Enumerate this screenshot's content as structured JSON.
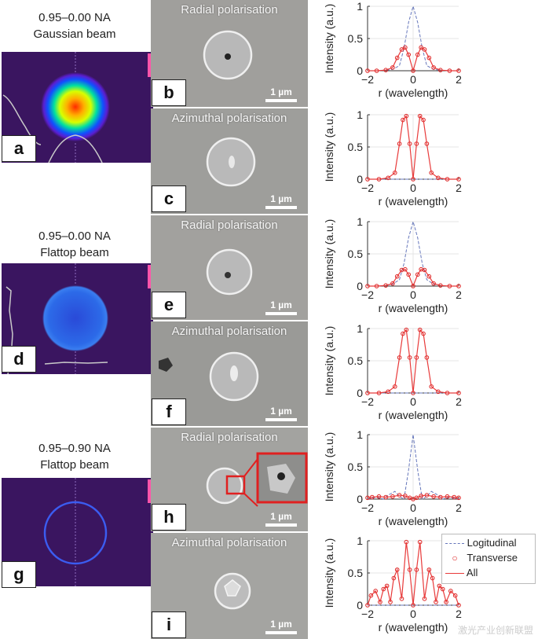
{
  "beams": [
    {
      "line1": "0.95–0.00 NA",
      "line2": "Gaussian beam",
      "label": "a"
    },
    {
      "line1": "0.95–0.00 NA",
      "line2": "Flattop beam",
      "label": "d"
    },
    {
      "line1": "0.95–0.90 NA",
      "line2": "Flattop beam",
      "label": "g"
    }
  ],
  "sem": [
    {
      "title": "Radial polarisation",
      "label": "b",
      "scale": "1 µm"
    },
    {
      "title": "Azimuthal polarisation",
      "label": "c",
      "scale": "1 µm"
    },
    {
      "title": "Radial polarisation",
      "label": "e",
      "scale": "1 µm"
    },
    {
      "title": "Azimuthal polarisation",
      "label": "f",
      "scale": "1 µm"
    },
    {
      "title": "Radial polarisation",
      "label": "h",
      "scale": "1 µm"
    },
    {
      "title": "Azimuthal polarisation",
      "label": "i",
      "scale": "1 µm"
    }
  ],
  "legend": {
    "longitudinal": "Logitudinal",
    "transverse": "Transverse",
    "all": "All"
  },
  "colors": {
    "longitudinal": "#6677bb",
    "transverse": "#dd2222",
    "all": "#e83a3a",
    "sem_bg": "#9a9a9a",
    "beam_bg": "#3a1560"
  },
  "watermark": "激光产业创新联盟",
  "chart_data": [
    {
      "type": "line",
      "panel": "b",
      "xlabel": "r (wavelength)",
      "ylabel": "Intensity (a.u.)",
      "xlim": [
        -2,
        2
      ],
      "ylim": [
        0,
        1
      ],
      "xticks": [
        -2,
        0,
        2
      ],
      "yticks": [
        0,
        0.5,
        1
      ],
      "series": [
        {
          "name": "Logitudinal",
          "x": [
            -2,
            -1.6,
            -1.2,
            -0.9,
            -0.6,
            -0.4,
            -0.2,
            0,
            0.2,
            0.4,
            0.6,
            0.9,
            1.2,
            1.6,
            2
          ],
          "y": [
            0,
            0,
            0.01,
            0.02,
            0.08,
            0.35,
            0.75,
            1.0,
            0.75,
            0.35,
            0.08,
            0.02,
            0.01,
            0,
            0
          ]
        },
        {
          "name": "Transverse",
          "x": [
            -2,
            -1.6,
            -1.2,
            -0.9,
            -0.7,
            -0.5,
            -0.35,
            -0.2,
            0,
            0.2,
            0.35,
            0.5,
            0.7,
            0.9,
            1.2,
            1.6,
            2
          ],
          "y": [
            0,
            0,
            0.01,
            0.05,
            0.2,
            0.33,
            0.36,
            0.25,
            0,
            0.25,
            0.36,
            0.33,
            0.2,
            0.05,
            0.01,
            0,
            0
          ]
        },
        {
          "name": "All",
          "x": [
            -2,
            -1.6,
            -1.2,
            -0.9,
            -0.7,
            -0.5,
            -0.35,
            -0.2,
            0,
            0.2,
            0.35,
            0.5,
            0.7,
            0.9,
            1.2,
            1.6,
            2
          ],
          "y": [
            0,
            0,
            0.01,
            0.05,
            0.2,
            0.33,
            0.36,
            0.25,
            0,
            0.25,
            0.36,
            0.33,
            0.2,
            0.05,
            0.01,
            0,
            0
          ]
        }
      ]
    },
    {
      "type": "line",
      "panel": "c",
      "xlabel": "r (wavelength)",
      "ylabel": "Intensity (a.u.)",
      "xlim": [
        -2,
        2
      ],
      "ylim": [
        0,
        1
      ],
      "xticks": [
        -2,
        0,
        2
      ],
      "yticks": [
        0,
        0.5,
        1
      ],
      "series": [
        {
          "name": "Logitudinal",
          "x": [
            -2,
            2
          ],
          "y": [
            0,
            0
          ]
        },
        {
          "name": "Transverse",
          "x": [
            -2,
            -1.5,
            -1.1,
            -0.8,
            -0.6,
            -0.45,
            -0.3,
            -0.15,
            0,
            0.15,
            0.3,
            0.45,
            0.6,
            0.8,
            1.1,
            1.5,
            2
          ],
          "y": [
            0,
            0,
            0.02,
            0.1,
            0.55,
            0.92,
            0.98,
            0.55,
            0,
            0.55,
            0.98,
            0.92,
            0.55,
            0.1,
            0.02,
            0,
            0
          ]
        },
        {
          "name": "All",
          "x": [
            -2,
            -1.5,
            -1.1,
            -0.8,
            -0.6,
            -0.45,
            -0.3,
            -0.15,
            0,
            0.15,
            0.3,
            0.45,
            0.6,
            0.8,
            1.1,
            1.5,
            2
          ],
          "y": [
            0,
            0,
            0.02,
            0.1,
            0.55,
            0.92,
            0.98,
            0.55,
            0,
            0.55,
            0.98,
            0.92,
            0.55,
            0.1,
            0.02,
            0,
            0
          ]
        }
      ]
    },
    {
      "type": "line",
      "panel": "e",
      "xlabel": "r (wavelength)",
      "ylabel": "Intensity (a.u.)",
      "xlim": [
        -2,
        2
      ],
      "ylim": [
        0,
        1
      ],
      "xticks": [
        -2,
        0,
        2
      ],
      "yticks": [
        0,
        0.5,
        1
      ],
      "series": [
        {
          "name": "Logitudinal",
          "x": [
            -2,
            -1.6,
            -1.2,
            -0.9,
            -0.6,
            -0.4,
            -0.2,
            0,
            0.2,
            0.4,
            0.6,
            0.9,
            1.2,
            1.6,
            2
          ],
          "y": [
            0,
            0,
            0.01,
            0.03,
            0.1,
            0.35,
            0.75,
            1.0,
            0.75,
            0.35,
            0.1,
            0.03,
            0.01,
            0,
            0
          ]
        },
        {
          "name": "Transverse",
          "x": [
            -2,
            -1.6,
            -1.2,
            -0.9,
            -0.7,
            -0.5,
            -0.35,
            -0.2,
            0,
            0.2,
            0.35,
            0.5,
            0.7,
            0.9,
            1.2,
            1.6,
            2
          ],
          "y": [
            0,
            0,
            0.01,
            0.04,
            0.15,
            0.25,
            0.26,
            0.18,
            0,
            0.18,
            0.26,
            0.25,
            0.15,
            0.04,
            0.01,
            0,
            0
          ]
        },
        {
          "name": "All",
          "x": [
            -2,
            -1.6,
            -1.2,
            -0.9,
            -0.7,
            -0.5,
            -0.35,
            -0.2,
            0,
            0.2,
            0.35,
            0.5,
            0.7,
            0.9,
            1.2,
            1.6,
            2
          ],
          "y": [
            0,
            0,
            0.01,
            0.04,
            0.15,
            0.25,
            0.26,
            0.18,
            0,
            0.18,
            0.26,
            0.25,
            0.15,
            0.04,
            0.01,
            0,
            0
          ]
        }
      ]
    },
    {
      "type": "line",
      "panel": "f",
      "xlabel": "r (wavelength)",
      "ylabel": "Intensity (a.u.)",
      "xlim": [
        -2,
        2
      ],
      "ylim": [
        0,
        1
      ],
      "xticks": [
        -2,
        0,
        2
      ],
      "yticks": [
        0,
        0.5,
        1
      ],
      "series": [
        {
          "name": "Logitudinal",
          "x": [
            -2,
            2
          ],
          "y": [
            0,
            0
          ]
        },
        {
          "name": "Transverse",
          "x": [
            -2,
            -1.5,
            -1.1,
            -0.8,
            -0.6,
            -0.45,
            -0.3,
            -0.15,
            0,
            0.15,
            0.3,
            0.45,
            0.6,
            0.8,
            1.1,
            1.5,
            2
          ],
          "y": [
            0,
            0,
            0.02,
            0.1,
            0.55,
            0.92,
            0.98,
            0.55,
            0,
            0.55,
            0.98,
            0.92,
            0.55,
            0.1,
            0.02,
            0,
            0
          ]
        },
        {
          "name": "All",
          "x": [
            -2,
            -1.5,
            -1.1,
            -0.8,
            -0.6,
            -0.45,
            -0.3,
            -0.15,
            0,
            0.15,
            0.3,
            0.45,
            0.6,
            0.8,
            1.1,
            1.5,
            2
          ],
          "y": [
            0,
            0,
            0.02,
            0.1,
            0.55,
            0.92,
            0.98,
            0.55,
            0,
            0.55,
            0.98,
            0.92,
            0.55,
            0.1,
            0.02,
            0,
            0
          ]
        }
      ]
    },
    {
      "type": "line",
      "panel": "h",
      "xlabel": "r (wavelength)",
      "ylabel": "Intensity (a.u.)",
      "xlim": [
        -2,
        2
      ],
      "ylim": [
        0,
        1
      ],
      "xticks": [
        -2,
        0,
        2
      ],
      "yticks": [
        0,
        0.5,
        1
      ],
      "series": [
        {
          "name": "Logitudinal",
          "x": [
            -2,
            -1.6,
            -1.3,
            -1.1,
            -0.8,
            -0.6,
            -0.4,
            -0.2,
            0,
            0.2,
            0.4,
            0.6,
            0.8,
            1.1,
            1.3,
            1.6,
            2
          ],
          "y": [
            0,
            0.03,
            0,
            0.06,
            0.12,
            0.04,
            0,
            0.45,
            1.0,
            0.45,
            0,
            0.04,
            0.12,
            0.06,
            0,
            0.03,
            0
          ]
        },
        {
          "name": "Transverse",
          "x": [
            -2,
            -1.8,
            -1.5,
            -1.2,
            -0.9,
            -0.6,
            -0.35,
            -0.15,
            0,
            0.15,
            0.35,
            0.6,
            0.9,
            1.2,
            1.5,
            1.8,
            2
          ],
          "y": [
            0.02,
            0.03,
            0.04,
            0.03,
            0.04,
            0.06,
            0.05,
            0.02,
            0,
            0.02,
            0.05,
            0.06,
            0.04,
            0.03,
            0.04,
            0.03,
            0.02
          ]
        },
        {
          "name": "All",
          "x": [
            -2,
            -1.8,
            -1.5,
            -1.2,
            -0.9,
            -0.6,
            -0.35,
            -0.15,
            0,
            0.15,
            0.35,
            0.6,
            0.9,
            1.2,
            1.5,
            1.8,
            2
          ],
          "y": [
            0.02,
            0.03,
            0.04,
            0.03,
            0.04,
            0.06,
            0.05,
            0.02,
            0,
            0.02,
            0.05,
            0.06,
            0.04,
            0.03,
            0.04,
            0.03,
            0.02
          ]
        }
      ]
    },
    {
      "type": "line",
      "panel": "i",
      "xlabel": "r (wavelength)",
      "ylabel": "Intensity (a.u.)",
      "xlim": [
        -2,
        2
      ],
      "ylim": [
        0,
        1
      ],
      "xticks": [
        -2,
        0,
        2
      ],
      "yticks": [
        0,
        0.5,
        1
      ],
      "series": [
        {
          "name": "Logitudinal",
          "x": [
            -2,
            2
          ],
          "y": [
            0,
            0
          ]
        },
        {
          "name": "Transverse",
          "x": [
            -2,
            -1.85,
            -1.65,
            -1.45,
            -1.3,
            -1.15,
            -1.0,
            -0.85,
            -0.7,
            -0.5,
            -0.3,
            -0.15,
            0,
            0.15,
            0.3,
            0.5,
            0.7,
            0.85,
            1.0,
            1.15,
            1.3,
            1.45,
            1.65,
            1.85,
            2
          ],
          "y": [
            0,
            0.15,
            0.22,
            0.05,
            0.25,
            0.3,
            0.05,
            0.42,
            0.55,
            0.1,
            0.98,
            0.55,
            0,
            0.55,
            0.98,
            0.1,
            0.55,
            0.42,
            0.05,
            0.3,
            0.25,
            0.05,
            0.22,
            0.15,
            0
          ]
        },
        {
          "name": "All",
          "x": [
            -2,
            -1.85,
            -1.65,
            -1.45,
            -1.3,
            -1.15,
            -1.0,
            -0.85,
            -0.7,
            -0.5,
            -0.3,
            -0.15,
            0,
            0.15,
            0.3,
            0.5,
            0.7,
            0.85,
            1.0,
            1.15,
            1.3,
            1.45,
            1.65,
            1.85,
            2
          ],
          "y": [
            0,
            0.15,
            0.22,
            0.05,
            0.25,
            0.3,
            0.05,
            0.42,
            0.55,
            0.1,
            0.98,
            0.55,
            0,
            0.55,
            0.98,
            0.1,
            0.55,
            0.42,
            0.05,
            0.3,
            0.25,
            0.05,
            0.22,
            0.15,
            0
          ]
        }
      ]
    }
  ]
}
